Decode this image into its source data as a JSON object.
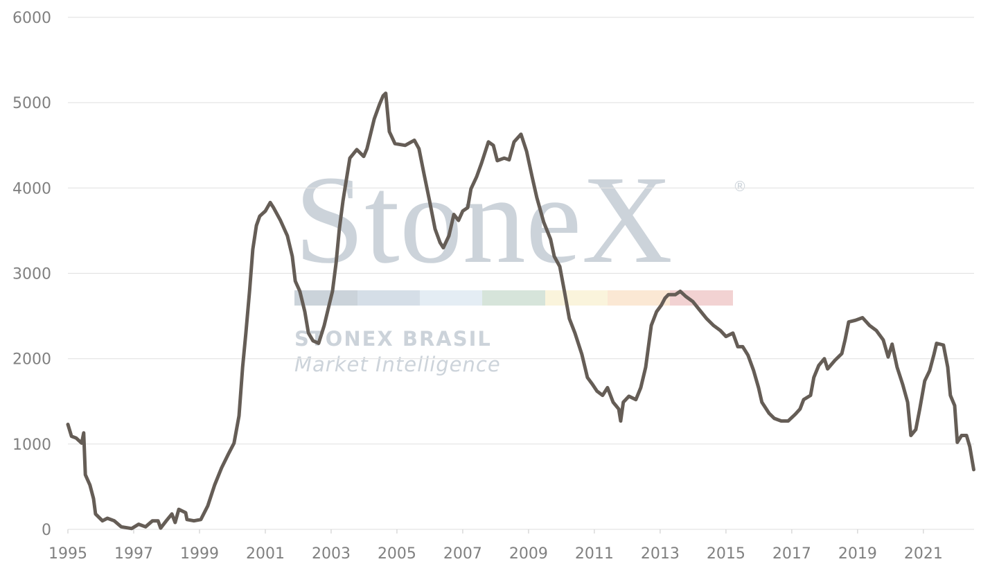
{
  "chart_data": {
    "type": "line",
    "watermark": {
      "brand": "StoneX",
      "mark": "®",
      "line1": "STONEX BRASIL",
      "line2": "Market Intelligence"
    },
    "x": [
      1995.0,
      1995.11,
      1995.25,
      1995.42,
      1995.48,
      1995.53,
      1995.67,
      1995.78,
      1995.84,
      1996.05,
      1996.2,
      1996.41,
      1996.62,
      1996.94,
      1997.15,
      1997.36,
      1997.57,
      1997.74,
      1997.82,
      1997.99,
      1998.16,
      1998.26,
      1998.37,
      1998.58,
      1998.62,
      1998.83,
      1999.04,
      1999.25,
      1999.46,
      1999.67,
      1999.88,
      2000.05,
      2000.2,
      2000.31,
      2000.41,
      2000.52,
      2000.62,
      2000.73,
      2000.83,
      2001.0,
      2001.15,
      2001.25,
      2001.46,
      2001.67,
      2001.82,
      2001.91,
      2002.05,
      2002.2,
      2002.31,
      2002.45,
      2002.62,
      2002.79,
      2002.94,
      2003.04,
      2003.15,
      2003.25,
      2003.36,
      2003.46,
      2003.57,
      2003.78,
      2003.99,
      2004.09,
      2004.31,
      2004.47,
      2004.58,
      2004.66,
      2004.77,
      2004.94,
      2005.25,
      2005.53,
      2005.67,
      2005.82,
      2005.99,
      2006.16,
      2006.31,
      2006.41,
      2006.58,
      2006.73,
      2006.87,
      2007.0,
      2007.15,
      2007.25,
      2007.42,
      2007.57,
      2007.78,
      2007.93,
      2008.05,
      2008.26,
      2008.41,
      2008.56,
      2008.77,
      2008.94,
      2009.11,
      2009.25,
      2009.46,
      2009.67,
      2009.78,
      2009.95,
      2010.09,
      2010.24,
      2010.41,
      2010.62,
      2010.79,
      2010.94,
      2011.08,
      2011.25,
      2011.4,
      2011.57,
      2011.74,
      2011.8,
      2011.88,
      2012.05,
      2012.26,
      2012.41,
      2012.56,
      2012.73,
      2012.89,
      2013.04,
      2013.15,
      2013.25,
      2013.46,
      2013.61,
      2013.78,
      2013.99,
      2014.2,
      2014.41,
      2014.62,
      2014.83,
      2015.0,
      2015.21,
      2015.36,
      2015.51,
      2015.67,
      2015.84,
      2015.99,
      2016.09,
      2016.31,
      2016.47,
      2016.68,
      2016.89,
      2017.11,
      2017.25,
      2017.36,
      2017.57,
      2017.67,
      2017.82,
      2017.99,
      2018.09,
      2018.31,
      2018.52,
      2018.62,
      2018.73,
      2018.94,
      2019.15,
      2019.36,
      2019.57,
      2019.78,
      2019.93,
      2020.05,
      2020.2,
      2020.37,
      2020.52,
      2020.62,
      2020.77,
      2020.89,
      2021.04,
      2021.19,
      2021.32,
      2021.4,
      2021.61,
      2021.74,
      2021.82,
      2021.95,
      2022.03,
      2022.16,
      2022.31,
      2022.41,
      2022.53
    ],
    "series": [
      {
        "color": "#655d56",
        "values": [
          1230,
          1090,
          1070,
          1010,
          1130,
          640,
          520,
          360,
          180,
          100,
          130,
          100,
          30,
          10,
          60,
          30,
          100,
          100,
          15,
          100,
          180,
          80,
          235,
          195,
          115,
          100,
          115,
          275,
          520,
          720,
          885,
          1010,
          1330,
          1900,
          2300,
          2790,
          3280,
          3560,
          3670,
          3730,
          3830,
          3770,
          3620,
          3440,
          3200,
          2910,
          2790,
          2550,
          2300,
          2210,
          2180,
          2390,
          2630,
          2790,
          3120,
          3520,
          3850,
          4090,
          4350,
          4450,
          4370,
          4460,
          4810,
          4980,
          5080,
          5110,
          4660,
          4520,
          4500,
          4560,
          4460,
          4170,
          3850,
          3520,
          3360,
          3300,
          3440,
          3690,
          3620,
          3730,
          3770,
          3990,
          4130,
          4290,
          4540,
          4500,
          4320,
          4350,
          4330,
          4540,
          4630,
          4430,
          4130,
          3890,
          3600,
          3400,
          3200,
          3080,
          2790,
          2470,
          2300,
          2050,
          1780,
          1700,
          1620,
          1570,
          1660,
          1490,
          1410,
          1270,
          1490,
          1560,
          1520,
          1660,
          1900,
          2390,
          2550,
          2630,
          2710,
          2750,
          2750,
          2790,
          2730,
          2670,
          2570,
          2470,
          2390,
          2330,
          2260,
          2300,
          2140,
          2140,
          2040,
          1860,
          1660,
          1490,
          1360,
          1300,
          1270,
          1270,
          1350,
          1410,
          1520,
          1570,
          1780,
          1920,
          2000,
          1880,
          1980,
          2060,
          2220,
          2430,
          2450,
          2480,
          2390,
          2330,
          2220,
          2020,
          2170,
          1900,
          1700,
          1490,
          1100,
          1170,
          1410,
          1740,
          1860,
          2050,
          2180,
          2160,
          1900,
          1570,
          1450,
          1020,
          1100,
          1100,
          970,
          700
        ]
      }
    ],
    "xlim": [
      1995,
      2022.54
    ],
    "xticks": [
      1995,
      1997,
      1999,
      2001,
      2003,
      2005,
      2007,
      2009,
      2011,
      2013,
      2015,
      2017,
      2019,
      2021
    ],
    "ylim": [
      0,
      6000
    ],
    "yticks": [
      0,
      1000,
      2000,
      3000,
      4000,
      5000,
      6000
    ],
    "grid": true
  }
}
